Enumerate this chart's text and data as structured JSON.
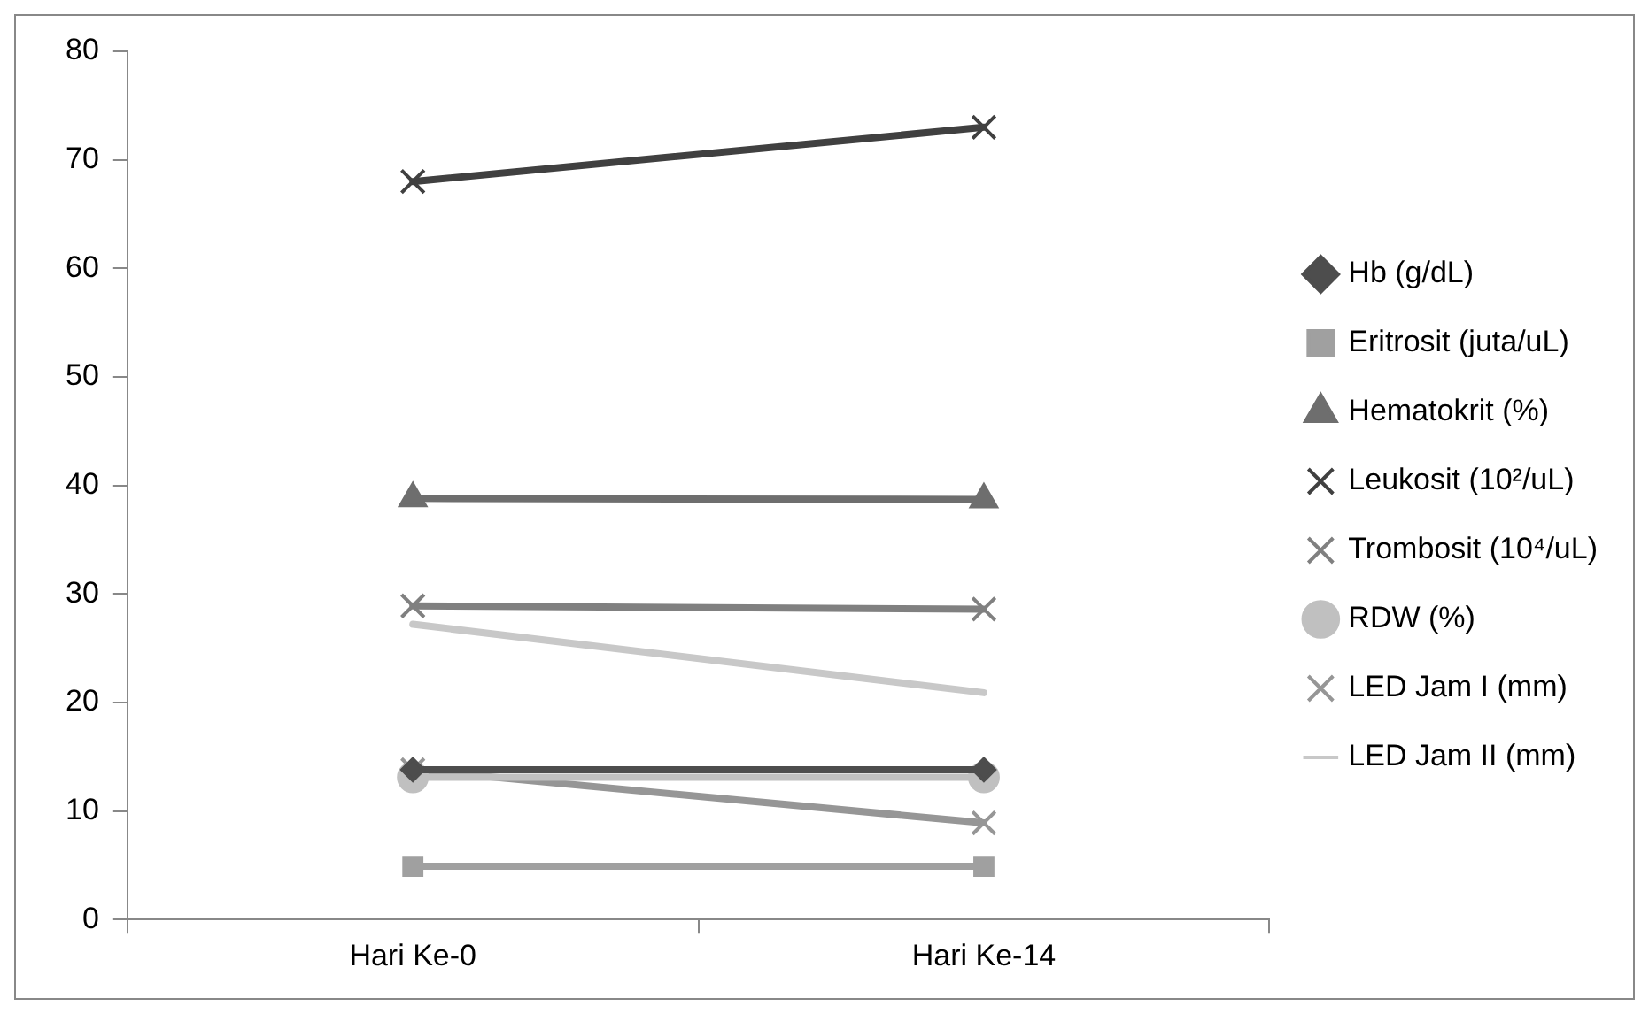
{
  "chart_data": {
    "type": "line",
    "categories": [
      "Hari Ke-0",
      "Hari Ke-14"
    ],
    "series": [
      {
        "name": "Hb (g/dL)",
        "color": "#4d4d4d",
        "marker": "diamond",
        "values": [
          13.8,
          13.8
        ]
      },
      {
        "name": "Eritrosit (juta/uL)",
        "color": "#a0a0a0",
        "marker": "square",
        "values": [
          4.9,
          4.9
        ]
      },
      {
        "name": "Hematokrit (%)",
        "color": "#6e6e6e",
        "marker": "triangle",
        "values": [
          38.8,
          38.7
        ]
      },
      {
        "name": "Leukosit (10²/uL)",
        "color": "#404040",
        "marker": "cross",
        "values": [
          68,
          73
        ]
      },
      {
        "name": "Trombosit (10⁴/uL)",
        "color": "#808080",
        "marker": "cross",
        "values": [
          28.9,
          28.6
        ]
      },
      {
        "name": "RDW (%)",
        "color": "#c0c0c0",
        "marker": "circle",
        "values": [
          13.1,
          13.1
        ]
      },
      {
        "name": "LED Jam I (mm)",
        "color": "#969696",
        "marker": "cross",
        "values": [
          13.8,
          8.9
        ]
      },
      {
        "name": "LED Jam II (mm)",
        "color": "#c8c8c8",
        "marker": "none",
        "values": [
          27.2,
          20.9
        ]
      }
    ],
    "ylim": [
      0,
      80
    ],
    "yticks": [
      0,
      10,
      20,
      30,
      40,
      50,
      60,
      70,
      80
    ],
    "legend": "right"
  }
}
